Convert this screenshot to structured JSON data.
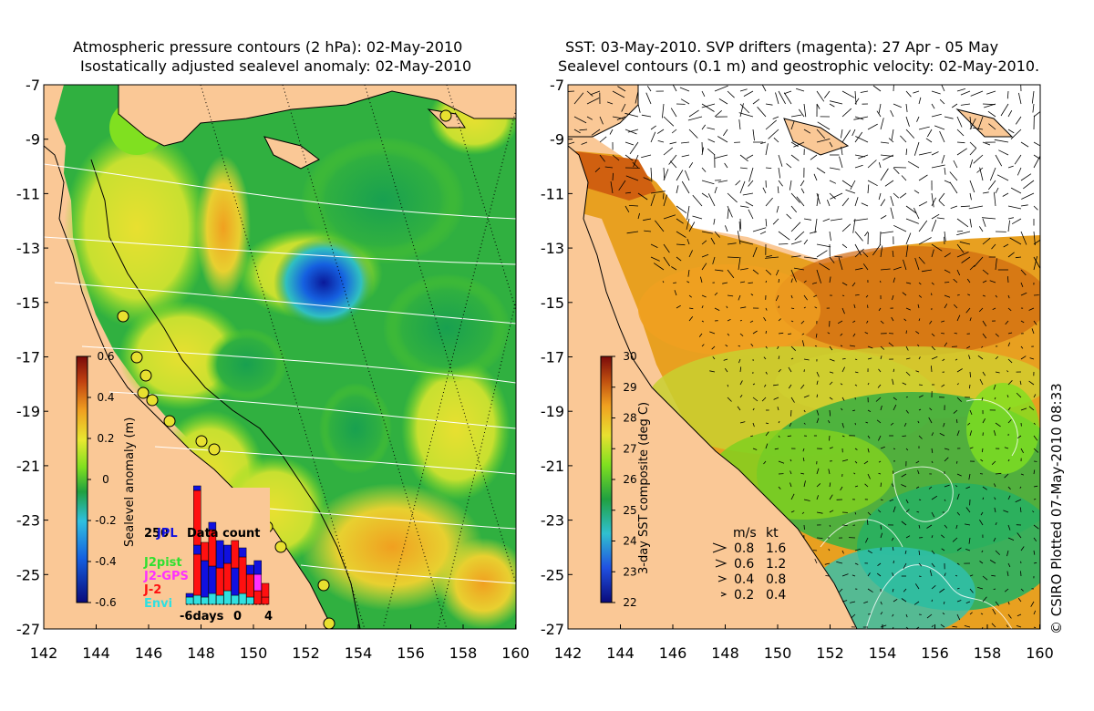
{
  "left_panel": {
    "title_line1": "Atmospheric pressure contours (2 hPa): 02-May-2010",
    "title_line2": "Isostatically adjusted sealevel anomaly: 02-May-2010",
    "colorbar_label": "Sealevel anomaly (m)",
    "colorbar_ticks": [
      "0.6",
      "0.4",
      "0.2",
      "0",
      "-0.2",
      "-0.4",
      "-0.6"
    ],
    "inset": {
      "title": "Data count",
      "count_label": "250",
      "missions": [
        {
          "name": "JPL",
          "color": "#1010e0"
        },
        {
          "name": "J2pist",
          "color": "#30e030"
        },
        {
          "name": "J2-GPS",
          "color": "#ff30ff"
        },
        {
          "name": "J-2",
          "color": "#ff1010"
        },
        {
          "name": "Envi",
          "color": "#30e0e0"
        }
      ],
      "xlabels": [
        "-6days",
        "0",
        "4"
      ]
    }
  },
  "right_panel": {
    "title_line1": "SST: 03-May-2010. SVP drifters (magenta): 27 Apr - 05 May",
    "title_line2": "Sealevel contours (0.1 m) and geostrophic velocity: 02-May-2010.",
    "colorbar_label": "3-day SST composite (deg C)",
    "colorbar_ticks": [
      "30",
      "29",
      "28",
      "27",
      "26",
      "25",
      "24",
      "23",
      "22"
    ],
    "velocity_legend": {
      "header_ms": "m/s",
      "header_kt": "kt",
      "rows": [
        {
          "ms": "0.8",
          "kt": "1.6"
        },
        {
          "ms": "0.6",
          "kt": "1.2"
        },
        {
          "ms": "0.4",
          "kt": "0.8"
        },
        {
          "ms": "0.2",
          "kt": "0.4"
        }
      ]
    }
  },
  "axes": {
    "lat_labels": [
      "-7",
      "-9",
      "-11",
      "-13",
      "-15",
      "-17",
      "-19",
      "-21",
      "-23",
      "-25",
      "-27"
    ],
    "lon_labels": [
      "142",
      "144",
      "146",
      "148",
      "150",
      "152",
      "154",
      "156",
      "158",
      "160"
    ]
  },
  "credit": "© CSIRO Plotted 07-May-2010 08:33",
  "colors": {
    "land": "#fac896",
    "sla_cmap": [
      "#0a0a7a",
      "#1560e0",
      "#30c0e0",
      "#20a040",
      "#80e020",
      "#e8e830",
      "#f0a020",
      "#c04010",
      "#7a0a0a"
    ],
    "sst_cmap": [
      "#0a0a7a",
      "#2050e0",
      "#30c0d0",
      "#20a040",
      "#80e020",
      "#e8e030",
      "#f0a020",
      "#c05010",
      "#7a0a0a"
    ]
  }
}
